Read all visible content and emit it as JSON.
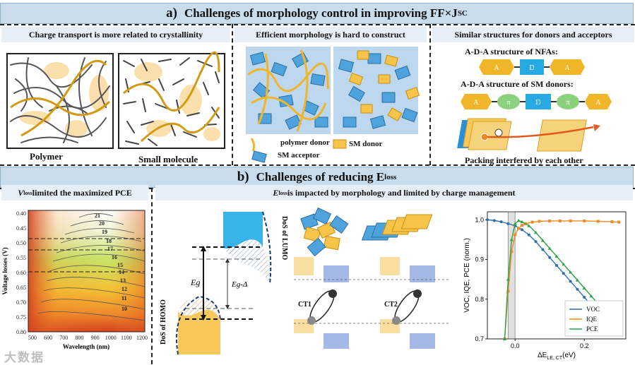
{
  "section_a": {
    "label": "a)",
    "title": "Challenges of morphology control in improving FF×J",
    "title_sub": "SC",
    "panel1": {
      "header": "Charge transport is more related to crystallinity",
      "label_left": "Polymer",
      "label_right": "Small molecule"
    },
    "panel2": {
      "header": "Efficient morphology is hard to construct",
      "legend_polymer": "polymer donor",
      "legend_sm_donor": "SM donor",
      "legend_sm_acceptor": "SM acceptor"
    },
    "panel3": {
      "header": "Similar structures for donors and acceptors",
      "nfa_title": "A-D-A structure of NFAs:",
      "smd_title": "A-D-A structure of SM donors:",
      "unit_a": "A",
      "unit_d": "D",
      "unit_pi": "π",
      "caption": "Packing interfered by each other"
    }
  },
  "section_b": {
    "label": "b)",
    "title": "Challenges of reducing E",
    "title_sub": "loss",
    "panel1": {
      "header_pre": "V",
      "header_sub": "loss",
      "header_post": " limited the maximized PCE",
      "ylabel": "Voltage losses (V)",
      "xlabel": "Wavelength (nm)",
      "yticks": [
        "0.40",
        "0.45",
        "0.50",
        "0.55",
        "0.60",
        "0.65",
        "0.70",
        "0.75",
        "0.80"
      ],
      "xticks": [
        "500",
        "600",
        "700",
        "800",
        "900",
        "1000",
        "1100",
        "1200"
      ],
      "contours": [
        "21",
        "20",
        "19",
        "18",
        "17",
        "16",
        "15",
        "14",
        "13",
        "12",
        "11",
        "10"
      ]
    },
    "panel2": {
      "header_pre": "E",
      "header_sub": "loss",
      "header_post": " is impacted by morphology and limited by charge management",
      "dos_lumo": "DoS of LUMO",
      "dos_homo": "DoS of HOMO",
      "eg": "Eg",
      "eg_delta": "Eg-Δ",
      "ct1": "CT1",
      "ct2": "CT2"
    },
    "panel3": {
      "ylabel": "VOC, IQE, PCE (norm.)",
      "xlabel": "ΔE",
      "xlabel_sub": "LE, CT",
      "xlabel_unit": "(eV)"
    }
  },
  "watermark": "大数据",
  "colors": {
    "banner": "#c9dcec",
    "subheader": "#e6eff7",
    "gold": "#f1b52a",
    "blue": "#4fa3dc",
    "green": "#8cd17d",
    "voc": "#2b6fae",
    "iqe": "#f08a24",
    "pce": "#2fa24a"
  },
  "chart_data": {
    "type": "line",
    "title": "",
    "xlabel": "ΔE_LE,CT (eV)",
    "ylabel": "VOC, IQE, PCE (norm.)",
    "xlim": [
      -0.08,
      0.32
    ],
    "ylim": [
      0.7,
      1.02
    ],
    "xticks": [
      "0.0",
      "0.2"
    ],
    "yticks": [
      "0.7",
      "0.8",
      "0.9",
      "1.0"
    ],
    "series": [
      {
        "name": "VOC",
        "color": "#2b6fae",
        "marker": "circle",
        "x": [
          -0.08,
          -0.06,
          -0.04,
          -0.02,
          0.0,
          0.02,
          0.04,
          0.06,
          0.08,
          0.1,
          0.12,
          0.14,
          0.16,
          0.18,
          0.2,
          0.22,
          0.24,
          0.26,
          0.28,
          0.3
        ],
        "y": [
          1.0,
          0.998,
          0.995,
          0.99,
          0.985,
          0.975,
          0.962,
          0.945,
          0.925,
          0.905,
          0.885,
          0.865,
          0.845,
          0.825,
          0.805,
          0.785,
          0.765,
          0.748,
          0.73,
          0.712
        ]
      },
      {
        "name": "IQE",
        "color": "#f08a24",
        "marker": "square",
        "x": [
          -0.03,
          -0.02,
          -0.01,
          0.0,
          0.01,
          0.02,
          0.03,
          0.05,
          0.07,
          0.1,
          0.13,
          0.16,
          0.2,
          0.24,
          0.28,
          0.3
        ],
        "y": [
          0.7,
          0.82,
          0.92,
          0.962,
          0.978,
          0.986,
          0.99,
          0.994,
          0.996,
          0.997,
          0.997,
          0.997,
          0.997,
          0.996,
          0.995,
          0.994
        ]
      },
      {
        "name": "PCE",
        "color": "#2fa24a",
        "marker": "triangle",
        "x": [
          -0.03,
          -0.02,
          -0.01,
          0.0,
          0.01,
          0.02,
          0.04,
          0.06,
          0.08,
          0.1,
          0.12,
          0.14,
          0.16,
          0.18,
          0.2,
          0.22,
          0.24,
          0.26,
          0.28,
          0.3
        ],
        "y": [
          0.7,
          0.85,
          0.95,
          0.99,
          0.998,
          0.995,
          0.985,
          0.968,
          0.948,
          0.928,
          0.908,
          0.888,
          0.868,
          0.848,
          0.828,
          0.808,
          0.788,
          0.768,
          0.75,
          0.74
        ]
      }
    ],
    "legend": [
      "VOC",
      "IQE",
      "PCE"
    ],
    "legend_position": "bottom-right",
    "shaded_region": [
      -0.02,
      0.0
    ]
  }
}
